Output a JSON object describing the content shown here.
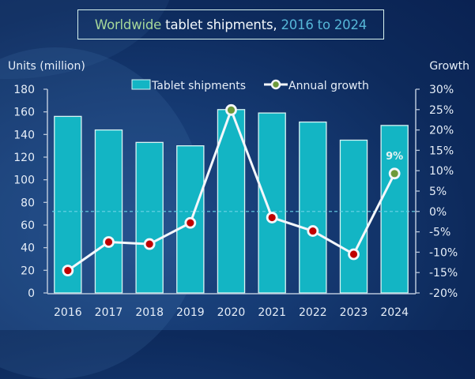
{
  "title": {
    "part1": "Worldwide",
    "part2": "tablet shipments,",
    "part3": "2016 to 2024"
  },
  "colors": {
    "bar_fill": "#13b5c4",
    "bar_stroke": "#d8f4f4",
    "line": "#f4f7fb",
    "point_negative": "#c00000",
    "point_positive": "#6e9a3a",
    "zero_line": "#6cd4e6",
    "axis": "#b8c6da"
  },
  "chart_data": {
    "type": "bar",
    "title": "Worldwide tablet shipments, 2016 to 2024",
    "categories": [
      "2016",
      "2017",
      "2018",
      "2019",
      "2020",
      "2021",
      "2022",
      "2023",
      "2024"
    ],
    "series": [
      {
        "name": "Tablet shipments",
        "type": "bar",
        "axis": "left",
        "values": [
          156,
          144,
          133,
          130,
          162,
          159,
          151,
          135,
          148
        ]
      },
      {
        "name": "Annual growth",
        "type": "line",
        "axis": "right",
        "values": [
          -14.5,
          -7.5,
          -8.0,
          -2.8,
          24.9,
          -1.5,
          -4.8,
          -10.5,
          9.3
        ]
      }
    ],
    "ylabel": "Units (million)",
    "y2label": "Growth",
    "ylim": [
      0,
      180
    ],
    "yticks": [
      "0",
      "20",
      "40",
      "60",
      "80",
      "100",
      "120",
      "140",
      "160",
      "180"
    ],
    "y2lim": [
      -20,
      30
    ],
    "y2ticks": [
      "-20%",
      "-15%",
      "-10%",
      "-5%",
      "0%",
      "5%",
      "10%",
      "15%",
      "20%",
      "25%",
      "30%"
    ],
    "annotations": [
      {
        "category": "2024",
        "series": "Annual growth",
        "text": "9%"
      }
    ],
    "legend": {
      "position": "top-center",
      "entries": [
        "Tablet shipments",
        "Annual growth"
      ]
    },
    "grid": false,
    "reference_line": {
      "axis": "right",
      "value": 0,
      "style": "dashed"
    }
  }
}
